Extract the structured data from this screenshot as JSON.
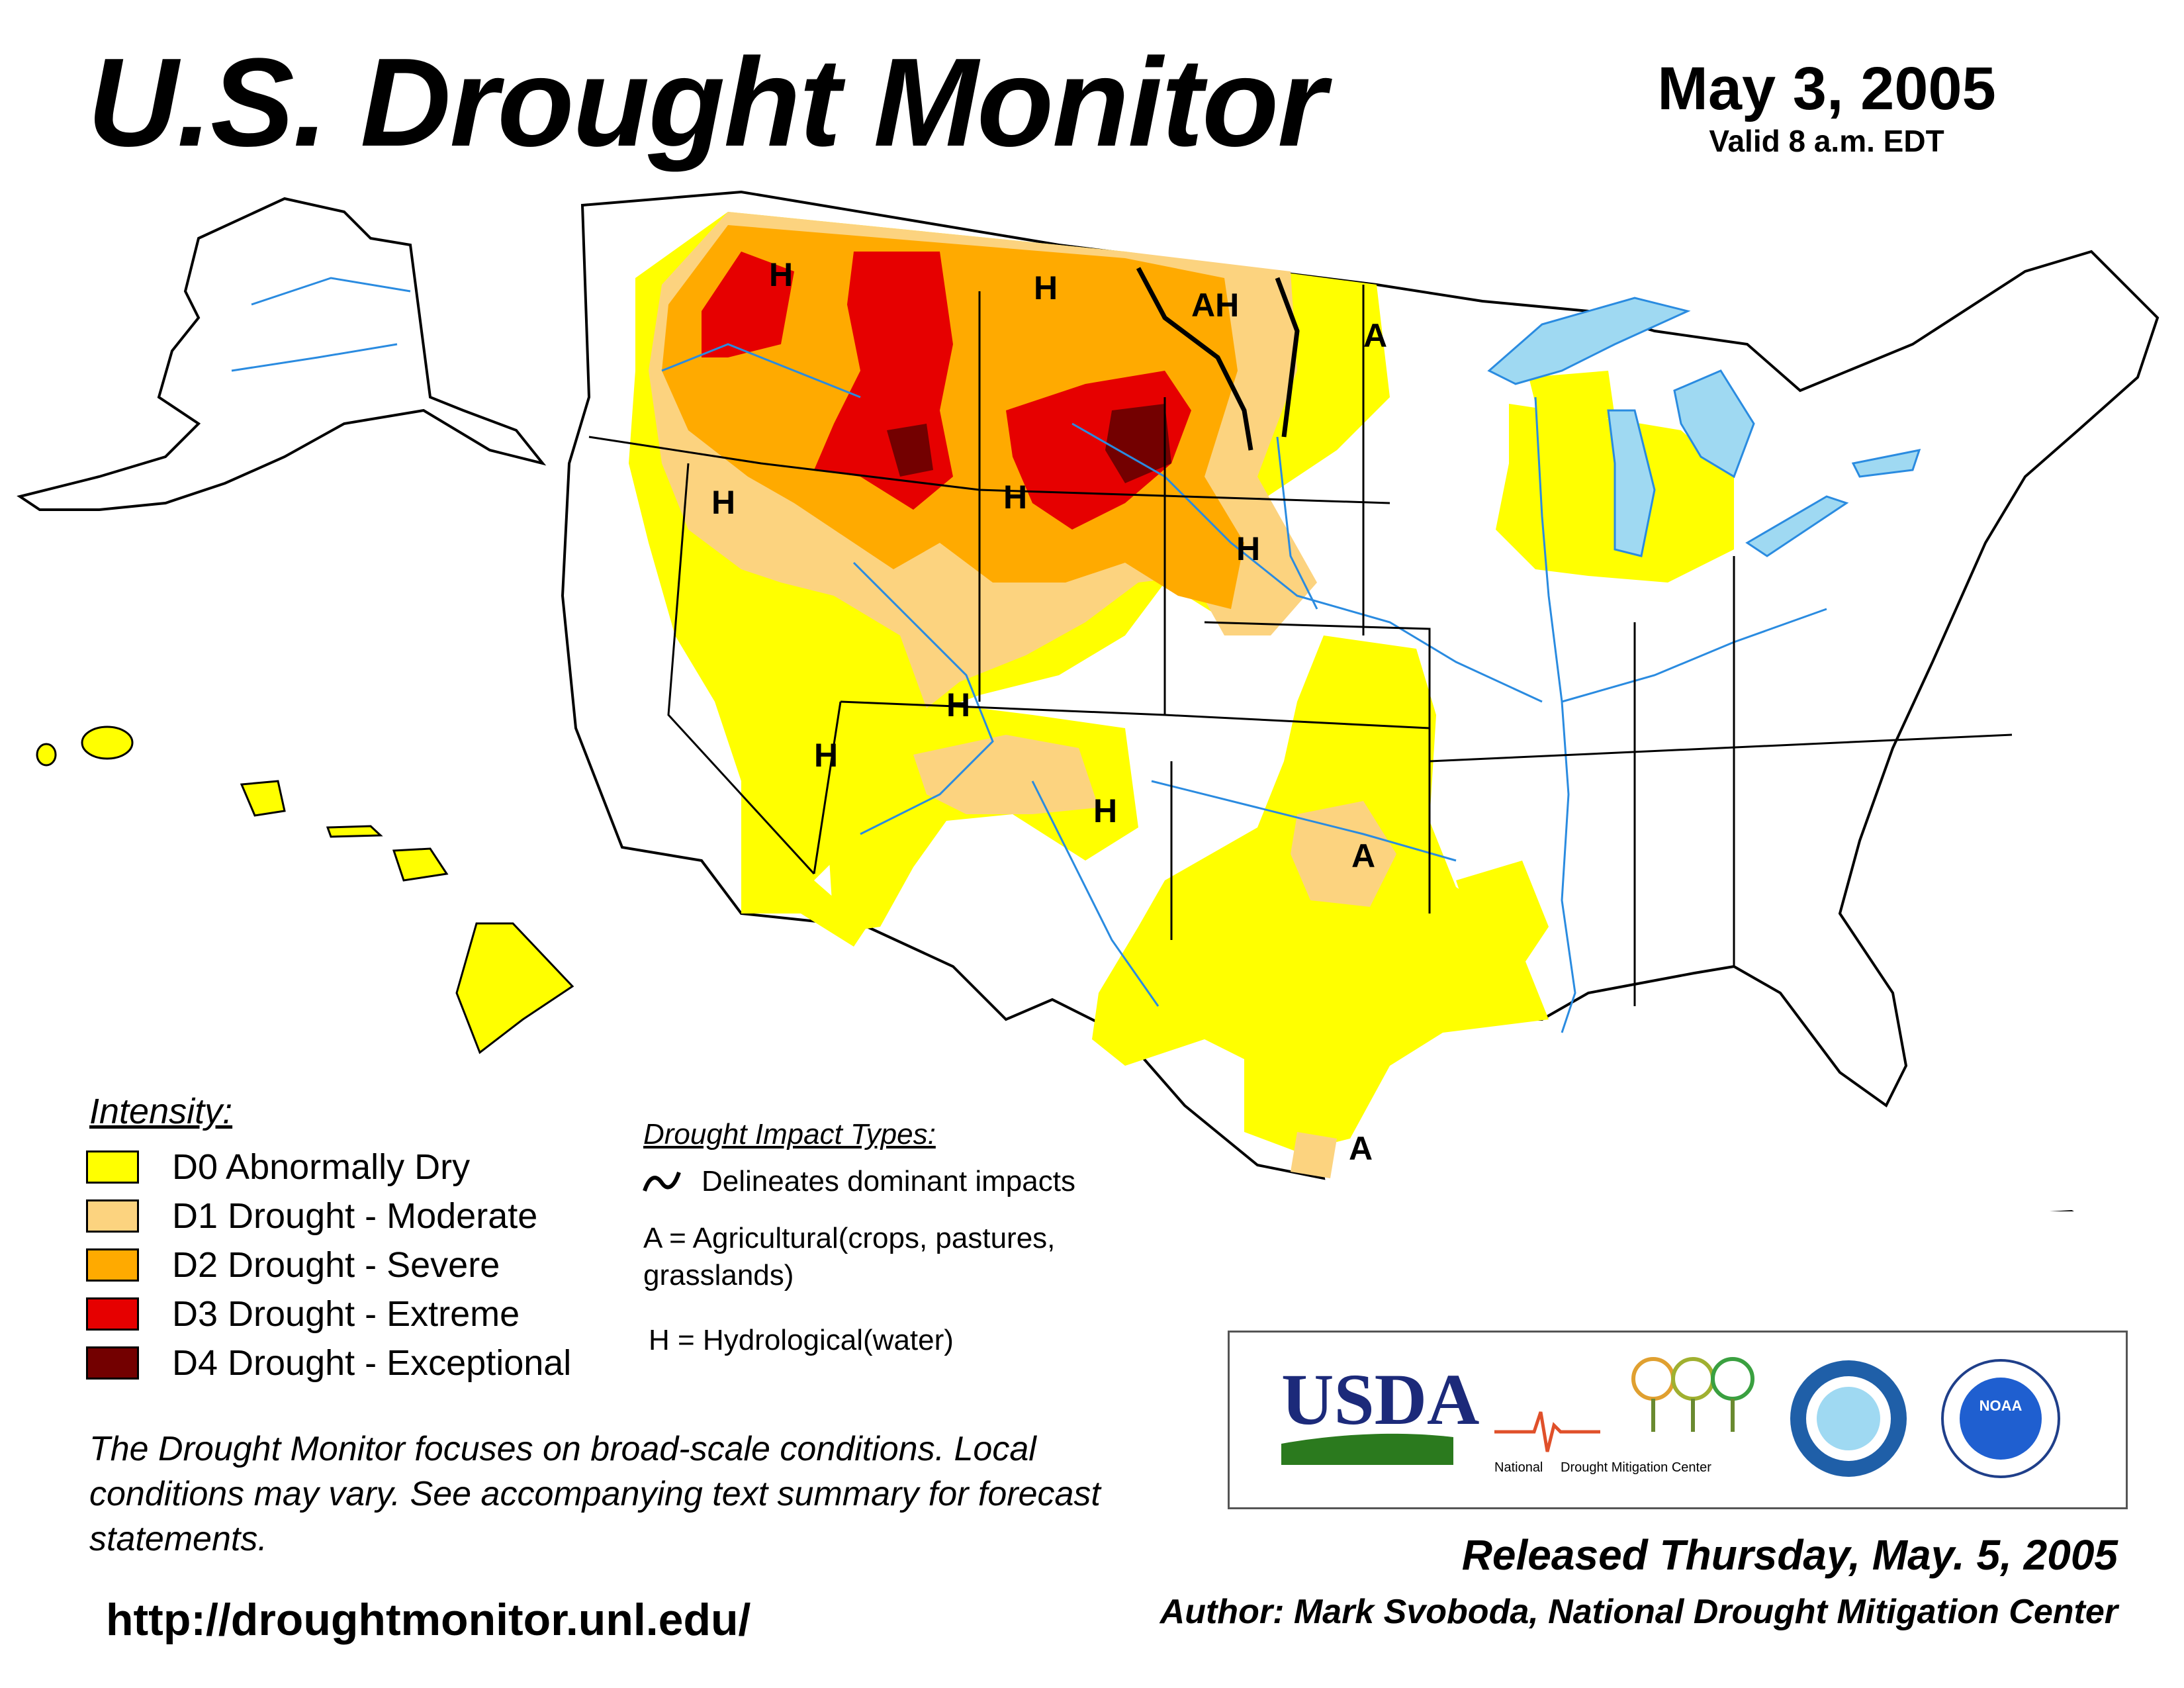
{
  "header": {
    "title": "U.S. Drought Monitor",
    "date": "May 3, 2005",
    "valid": "Valid 8 a.m. EDT"
  },
  "legend": {
    "title": "Intensity:",
    "items": [
      {
        "label": "D0 Abnormally Dry",
        "color": "#ffff00"
      },
      {
        "label": "D1 Drought - Moderate",
        "color": "#fcd37f"
      },
      {
        "label": "D2 Drought - Severe",
        "color": "#ffaa00"
      },
      {
        "label": "D3 Drought - Extreme",
        "color": "#e60000"
      },
      {
        "label": "D4 Drought - Exceptional",
        "color": "#730000"
      }
    ]
  },
  "impacts": {
    "title": "Drought Impact Types:",
    "line_label": "Delineates dominant impacts",
    "agricultural": "A = Agricultural(crops, pastures, grasslands)",
    "hydrological": "H = Hydrological(water)"
  },
  "map_labels": [
    "H",
    "H",
    "AH",
    "A",
    "H",
    "H",
    "H",
    "H",
    "H",
    "H",
    "A",
    "A"
  ],
  "disclaimer": "The Drought Monitor focuses on broad-scale conditions. Local conditions may vary. See accompanying text summary for forecast statements.",
  "url": "http://droughtmonitor.unl.edu/",
  "released": "Released Thursday, May. 5, 2005",
  "author": "Author: Mark Svoboda, National Drought Mitigation Center",
  "logos": {
    "usda": "USDA",
    "ndmc": [
      "National",
      "Drought Mitigation Center"
    ],
    "noaa": "NOAA"
  },
  "colors": {
    "water": "#9fd9f2",
    "river": "#2a8be0",
    "state_border": "#000000",
    "county_border": "#a0a0a0"
  }
}
